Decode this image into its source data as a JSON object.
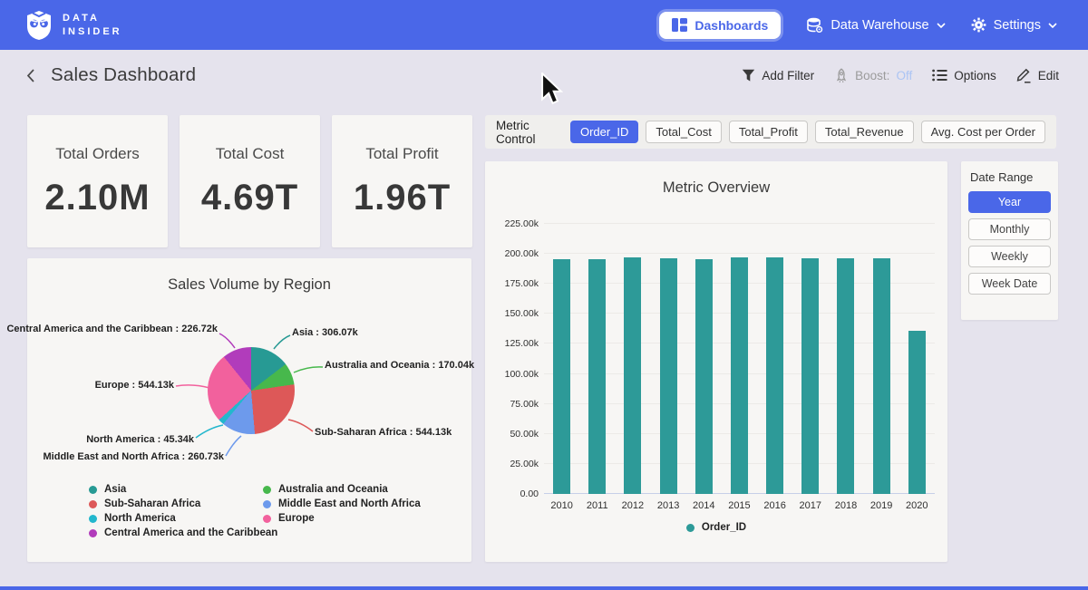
{
  "nav": {
    "brand": {
      "line1": "DATA",
      "line2": "INSIDER"
    },
    "items": [
      {
        "label": "Dashboards",
        "icon": "dashboard-grid-icon",
        "active": true
      },
      {
        "label": "Data Warehouse",
        "icon": "database-icon",
        "dropdown": true
      },
      {
        "label": "Settings",
        "icon": "gear-icon",
        "dropdown": true
      }
    ]
  },
  "header": {
    "title": "Sales Dashboard",
    "actions": {
      "add_filter": "Add Filter",
      "boost_label": "Boost:",
      "boost_value": "Off",
      "options": "Options",
      "edit": "Edit"
    }
  },
  "kpis": [
    {
      "label": "Total Orders",
      "value": "2.10M"
    },
    {
      "label": "Total Cost",
      "value": "4.69T"
    },
    {
      "label": "Total Profit",
      "value": "1.96T"
    }
  ],
  "metric_control": {
    "label": "Metric Control",
    "options": [
      {
        "label": "Order_ID",
        "active": true
      },
      {
        "label": "Total_Cost",
        "active": false
      },
      {
        "label": "Total_Profit",
        "active": false
      },
      {
        "label": "Total_Revenue",
        "active": false
      },
      {
        "label": "Avg. Cost per Order",
        "active": false
      }
    ]
  },
  "date_range": {
    "label": "Date Range",
    "options": [
      {
        "label": "Year",
        "active": true
      },
      {
        "label": "Monthly",
        "active": false
      },
      {
        "label": "Weekly",
        "active": false
      },
      {
        "label": "Week Date",
        "active": false
      }
    ]
  },
  "colors": {
    "accent": "#4a67e8",
    "nav_bg": "#4a67e8",
    "boost_off": "#abc4f4",
    "card_bg": "#f7f6f4",
    "page_bg": "#e5e3ed"
  },
  "chart_data": [
    {
      "type": "bar",
      "title": "Metric Overview",
      "categories": [
        "2010",
        "2011",
        "2012",
        "2013",
        "2014",
        "2015",
        "2016",
        "2017",
        "2018",
        "2019",
        "2020"
      ],
      "series": [
        {
          "name": "Order_ID",
          "color": "#2d9a98",
          "values": [
            195900,
            195800,
            197300,
            196000,
            195900,
            196700,
            197400,
            196000,
            196500,
            196600,
            135700
          ]
        }
      ],
      "xlabel": "",
      "ylabel": "",
      "ylim": [
        0,
        225000
      ],
      "yticks": [
        "0.00",
        "25.00k",
        "50.00k",
        "75.00k",
        "100.00k",
        "125.00k",
        "150.00k",
        "175.00k",
        "200.00k",
        "225.00k"
      ],
      "grid": true,
      "legend_position": "bottom"
    },
    {
      "type": "pie",
      "title": "Sales Volume by Region",
      "slices": [
        {
          "name": "Asia",
          "value": 306070,
          "label": "Asia : 306.07k",
          "color": "#279a94"
        },
        {
          "name": "Australia and Oceania",
          "value": 170040,
          "label": "Australia and Oceania : 170.04k",
          "color": "#47b84c"
        },
        {
          "name": "Sub-Saharan Africa",
          "value": 544130,
          "label": "Sub-Saharan Africa : 544.13k",
          "color": "#dd5858"
        },
        {
          "name": "Middle East and North Africa",
          "value": 260730,
          "label": "Middle East and North Africa : 260.73k",
          "color": "#6d9aec"
        },
        {
          "name": "North America",
          "value": 45340,
          "label": "North America : 45.34k",
          "color": "#23b7cd"
        },
        {
          "name": "Europe",
          "value": 544130,
          "label": "Europe : 544.13k",
          "color": "#f2619d"
        },
        {
          "name": "Central America and the Caribbean",
          "value": 226720,
          "label": "Central America and the Caribbean : 226.72k",
          "color": "#b13cbb"
        }
      ],
      "legend_position": "bottom",
      "legend_columns": [
        [
          0,
          2,
          4,
          6
        ],
        [
          1,
          3,
          5
        ]
      ]
    }
  ]
}
